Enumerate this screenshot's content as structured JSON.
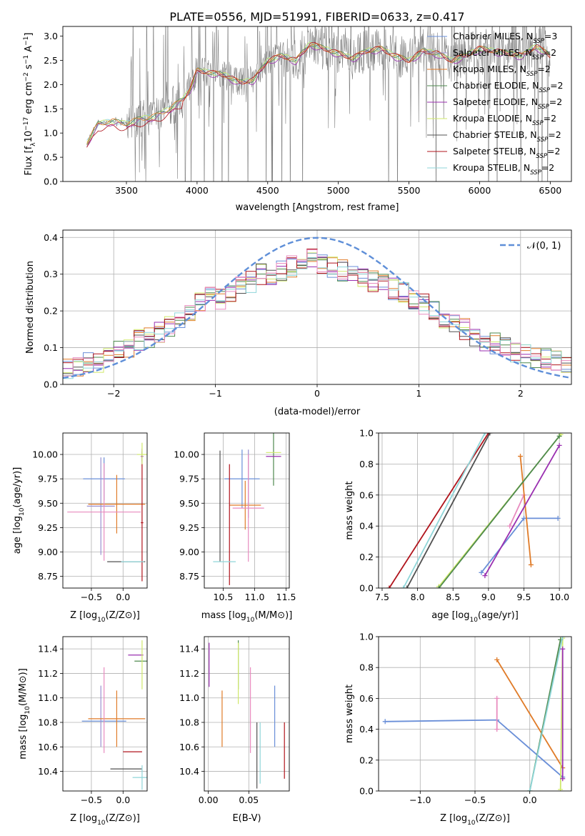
{
  "figure_title": "PLATE=0556, MJD=51991, FIBERID=0633, z=0.417",
  "colors": {
    "chabrier_miles": "#6a8fd8",
    "salpeter_miles": "#9b8fd0",
    "kroupa_miles": "#e07b28",
    "chabrier_elodie": "#4f8a4f",
    "salpeter_elodie": "#9a2fb0",
    "kroupa_elodie": "#cfe86a",
    "chabrier_stelib": "#505050",
    "salpeter_stelib": "#b0141c",
    "kroupa_stelib": "#8fd6d9",
    "data": "#808080",
    "normal_curve": "#5f8fd8",
    "pink_model": "#e88bbf",
    "grid": "#b0b0b0"
  },
  "chart_data": [
    {
      "id": "spectrum",
      "type": "line",
      "xlabel": "wavelength [Angstrom, rest frame]",
      "ylabel": "Flux [f",
      "xlim": [
        3050,
        6650
      ],
      "ylim": [
        0,
        3.2
      ],
      "xticks": [
        "3500",
        "4000",
        "4500",
        "5000",
        "5500",
        "6000",
        "6500"
      ],
      "xtick_values": [
        3500,
        4000,
        4500,
        5000,
        5500,
        6000,
        6500
      ],
      "yticks": [
        "0.0",
        "0.5",
        "1.0",
        "1.5",
        "2.0",
        "2.5",
        "3.0"
      ],
      "ytick_values": [
        0,
        0.5,
        1,
        1.5,
        2,
        2.5,
        3
      ],
      "grid": false,
      "legend_position": "top-right",
      "legend": [
        {
          "label": "Chabrier MILES, N",
          "sub": "SSP",
          "tail": "=3",
          "color_key": "chabrier_miles"
        },
        {
          "label": "Salpeter MILES, N",
          "sub": "SSP",
          "tail": "=2",
          "color_key": "salpeter_miles"
        },
        {
          "label": "Kroupa MILES, N",
          "sub": "SSP",
          "tail": "=2",
          "color_key": "kroupa_miles"
        },
        {
          "label": "Chabrier ELODIE, N",
          "sub": "SSP",
          "tail": "=2",
          "color_key": "chabrier_elodie"
        },
        {
          "label": "Salpeter ELODIE, N",
          "sub": "SSP",
          "tail": "=2",
          "color_key": "salpeter_elodie"
        },
        {
          "label": "Kroupa ELODIE, N",
          "sub": "SSP",
          "tail": "=2",
          "color_key": "kroupa_elodie"
        },
        {
          "label": "Chabrier STELIB, N",
          "sub": "SSP",
          "tail": "=2",
          "color_key": "chabrier_stelib"
        },
        {
          "label": "Salpeter STELIB, N",
          "sub": "SSP",
          "tail": "=2",
          "color_key": "salpeter_stelib"
        },
        {
          "label": "Kroupa STELIB, N",
          "sub": "SSP",
          "tail": "=2",
          "color_key": "kroupa_stelib"
        }
      ],
      "model_continuum": {
        "x": [
          3220,
          3300,
          3400,
          3500,
          3600,
          3700,
          3800,
          3900,
          3950,
          4000,
          4100,
          4200,
          4300,
          4400,
          4500,
          4600,
          4700,
          4800,
          4900,
          5000,
          5100,
          5200,
          5300,
          5400,
          5500,
          5600,
          5700,
          5800,
          5900,
          6000,
          6100,
          6200,
          6300,
          6400,
          6500
        ],
        "y": [
          0.8,
          1.2,
          1.25,
          1.2,
          1.3,
          1.35,
          1.5,
          1.7,
          1.9,
          2.3,
          2.25,
          2.2,
          2.05,
          2.1,
          2.5,
          2.6,
          2.5,
          2.85,
          2.75,
          2.65,
          2.55,
          2.7,
          2.75,
          2.6,
          2.5,
          2.7,
          2.65,
          2.5,
          2.6,
          2.75,
          2.7,
          2.65,
          2.6,
          2.8,
          2.6
        ]
      }
    },
    {
      "id": "residuals",
      "type": "histogram",
      "xlabel": "(data-model)/error",
      "ylabel": "Normed distribution",
      "xlim": [
        -2.5,
        2.5
      ],
      "ylim": [
        0,
        0.42
      ],
      "xticks": [
        "−2",
        "−1",
        "0",
        "1",
        "2"
      ],
      "xtick_values": [
        -2,
        -1,
        0,
        1,
        2
      ],
      "yticks": [
        "0.0",
        "0.1",
        "0.2",
        "0.3",
        "0.4"
      ],
      "ytick_values": [
        0,
        0.1,
        0.2,
        0.3,
        0.4
      ],
      "grid": true,
      "legend_position": "top-right",
      "legend_label": "𝒩(0, 1)",
      "normal_mean": 0,
      "normal_sigma": 1,
      "bin_centers": [
        -2.45,
        -2.35,
        -2.25,
        -2.15,
        -2.05,
        -1.95,
        -1.85,
        -1.75,
        -1.65,
        -1.55,
        -1.45,
        -1.35,
        -1.25,
        -1.15,
        -1.05,
        -0.95,
        -0.85,
        -0.75,
        -0.65,
        -0.55,
        -0.45,
        -0.35,
        -0.25,
        -0.15,
        -0.05,
        0.05,
        0.15,
        0.25,
        0.35,
        0.45,
        0.55,
        0.65,
        0.75,
        0.85,
        0.95,
        1.05,
        1.15,
        1.25,
        1.35,
        1.45,
        1.55,
        1.65,
        1.75,
        1.85,
        1.95,
        2.05,
        2.15,
        2.25,
        2.35,
        2.45
      ],
      "approx_heights": [
        0.04,
        0.045,
        0.06,
        0.055,
        0.07,
        0.09,
        0.1,
        0.12,
        0.13,
        0.14,
        0.16,
        0.18,
        0.2,
        0.22,
        0.24,
        0.23,
        0.25,
        0.27,
        0.28,
        0.3,
        0.29,
        0.31,
        0.32,
        0.33,
        0.34,
        0.33,
        0.32,
        0.31,
        0.3,
        0.29,
        0.28,
        0.27,
        0.26,
        0.25,
        0.23,
        0.22,
        0.2,
        0.18,
        0.16,
        0.15,
        0.13,
        0.12,
        0.11,
        0.1,
        0.09,
        0.08,
        0.075,
        0.07,
        0.065,
        0.06
      ]
    },
    {
      "id": "age_vs_z",
      "type": "scatter",
      "xlabel": "Z [log",
      "ylabel": "age  [log",
      "xlim": [
        -0.95,
        0.38
      ],
      "ylim": [
        8.63,
        10.22
      ],
      "xticks": [
        "−0.5",
        "0.0"
      ],
      "xtick_values": [
        -0.5,
        0.0
      ],
      "yticks": [
        "8.75",
        "9.00",
        "9.25",
        "9.50",
        "9.75",
        "10.00"
      ],
      "ytick_values": [
        8.75,
        9.0,
        9.25,
        9.5,
        9.75,
        10.0
      ],
      "grid": true,
      "points": [
        {
          "x": -0.3,
          "y": 9.75,
          "xerr": 0.33,
          "yerr": 0.22,
          "color_key": "chabrier_miles"
        },
        {
          "x": -0.35,
          "y": 9.47,
          "xerr": 0.22,
          "yerr": 0.5,
          "color_key": "salpeter_miles"
        },
        {
          "x": -0.1,
          "y": 9.49,
          "xerr": 0.45,
          "yerr": 0.3,
          "color_key": "kroupa_miles"
        },
        {
          "x": 0.3,
          "y": 9.98,
          "xerr": 0.0,
          "yerr": 0.05,
          "color_key": "chabrier_elodie"
        },
        {
          "x": 0.3,
          "y": 9.98,
          "xerr": 0.02,
          "yerr": 0.08,
          "color_key": "salpeter_elodie"
        },
        {
          "x": 0.3,
          "y": 10.0,
          "xerr": 0.08,
          "yerr": 0.12,
          "color_key": "kroupa_elodie"
        },
        {
          "x": 0.05,
          "y": 8.9,
          "xerr": 0.3,
          "yerr": 0.0,
          "color_key": "chabrier_stelib"
        },
        {
          "x": 0.3,
          "y": 9.3,
          "xerr": 0.02,
          "yerr": 0.6,
          "color_key": "salpeter_stelib"
        },
        {
          "x": 0.15,
          "y": 8.9,
          "xerr": 0.18,
          "yerr": 0.0,
          "color_key": "kroupa_stelib"
        },
        {
          "x": -0.3,
          "y": 9.41,
          "xerr": 0.58,
          "yerr": 0.5,
          "color_key": "pink_model"
        }
      ]
    },
    {
      "id": "age_vs_mass",
      "type": "scatter",
      "xlabel": "mass [log",
      "ylabel": "",
      "xlim": [
        10.2,
        11.55
      ],
      "ylim": [
        8.63,
        10.22
      ],
      "xticks": [
        "10.5",
        "11.0",
        "11.5"
      ],
      "xtick_values": [
        10.5,
        11.0,
        11.5
      ],
      "yticks": [
        "8.75",
        "9.00",
        "9.25",
        "9.50",
        "9.75",
        "10.00"
      ],
      "ytick_values": [
        8.75,
        9.0,
        9.25,
        9.5,
        9.75,
        10.0
      ],
      "grid": true,
      "points": [
        {
          "x": 10.8,
          "y": 9.75,
          "xerr": 0.28,
          "yerr": 0.3,
          "color_key": "chabrier_miles"
        },
        {
          "x": 10.9,
          "y": 9.7,
          "xerr": 0.0,
          "yerr": 0.35,
          "color_key": "salpeter_miles"
        },
        {
          "x": 10.85,
          "y": 9.48,
          "xerr": 0.25,
          "yerr": 0.25,
          "color_key": "kroupa_miles"
        },
        {
          "x": 11.3,
          "y": 9.98,
          "xerr": 0.0,
          "yerr": 0.3,
          "color_key": "chabrier_elodie"
        },
        {
          "x": 11.3,
          "y": 9.98,
          "xerr": 0.12,
          "yerr": 0.0,
          "color_key": "salpeter_elodie"
        },
        {
          "x": 11.3,
          "y": 10.02,
          "xerr": 0.12,
          "yerr": 0.0,
          "color_key": "kroupa_elodie"
        },
        {
          "x": 10.45,
          "y": 9.47,
          "xerr": 0.0,
          "yerr": 0.57,
          "color_key": "chabrier_stelib"
        },
        {
          "x": 10.6,
          "y": 9.28,
          "xerr": 0.0,
          "yerr": 0.62,
          "color_key": "salpeter_stelib"
        },
        {
          "x": 10.52,
          "y": 8.9,
          "xerr": 0.18,
          "yerr": 0.0,
          "color_key": "kroupa_stelib"
        },
        {
          "x": 10.9,
          "y": 9.45,
          "xerr": 0.25,
          "yerr": 0.55,
          "color_key": "pink_model"
        }
      ]
    },
    {
      "id": "weight_vs_age",
      "type": "line",
      "xlabel": "age  [log",
      "ylabel": "mass weight",
      "xlim": [
        7.45,
        10.17
      ],
      "ylim": [
        0,
        1
      ],
      "xticks": [
        "7.5",
        "8.0",
        "8.5",
        "9.0",
        "9.5",
        "10.0"
      ],
      "xtick_values": [
        7.5,
        8.0,
        8.5,
        9.0,
        9.5,
        10.0
      ],
      "yticks": [
        "0.0",
        "0.2",
        "0.4",
        "0.6",
        "0.8",
        "1.0"
      ],
      "ytick_values": [
        0,
        0.2,
        0.4,
        0.6,
        0.8,
        1.0
      ],
      "grid": true,
      "series": [
        {
          "color_key": "chabrier_miles",
          "x": [
            8.9,
            9.5,
            9.98
          ],
          "y": [
            0.1,
            0.45,
            0.45
          ]
        },
        {
          "color_key": "pink_model",
          "x": [
            9.3,
            9.5
          ],
          "y": [
            0.4,
            0.6
          ]
        },
        {
          "color_key": "kroupa_miles",
          "x": [
            9.45,
            9.6
          ],
          "y": [
            0.85,
            0.15
          ]
        },
        {
          "color_key": "salpeter_elodie",
          "x": [
            8.95,
            10.0
          ],
          "y": [
            0.08,
            0.92
          ]
        },
        {
          "color_key": "kroupa_elodie",
          "x": [
            8.3,
            10.02
          ],
          "y": [
            0.01,
            0.99
          ]
        },
        {
          "color_key": "chabrier_elodie",
          "x": [
            8.3,
            10.0
          ],
          "y": [
            0.0,
            0.98
          ]
        },
        {
          "color_key": "salpeter_stelib",
          "x": [
            7.6,
            9.0
          ],
          "y": [
            0.0,
            1.0
          ]
        },
        {
          "color_key": "chabrier_stelib",
          "x": [
            7.85,
            9.02
          ],
          "y": [
            0.0,
            1.0
          ]
        },
        {
          "color_key": "kroupa_stelib",
          "x": [
            7.8,
            8.95
          ],
          "y": [
            0.0,
            1.0
          ]
        }
      ]
    },
    {
      "id": "mass_vs_z",
      "type": "scatter",
      "xlabel": "Z [log",
      "ylabel": "mass [log",
      "xlim": [
        -0.95,
        0.38
      ],
      "ylim": [
        10.24,
        11.5
      ],
      "xticks": [
        "−0.5",
        "0.0"
      ],
      "xtick_values": [
        -0.5,
        0.0
      ],
      "yticks": [
        "10.4",
        "10.6",
        "10.8",
        "11.0",
        "11.2",
        "11.4"
      ],
      "ytick_values": [
        10.4,
        10.6,
        10.8,
        11.0,
        11.2,
        11.4
      ],
      "grid": true,
      "points": [
        {
          "x": -0.3,
          "y": 10.81,
          "xerr": 0.35,
          "yerr": 0.0,
          "color_key": "chabrier_miles"
        },
        {
          "x": -0.35,
          "y": 10.85,
          "xerr": 0.0,
          "yerr": 0.25,
          "color_key": "salpeter_miles"
        },
        {
          "x": -0.1,
          "y": 10.83,
          "xerr": 0.45,
          "yerr": 0.23,
          "color_key": "kroupa_miles"
        },
        {
          "x": 0.3,
          "y": 11.3,
          "xerr": 0.12,
          "yerr": 0.0,
          "color_key": "chabrier_elodie"
        },
        {
          "x": 0.2,
          "y": 11.35,
          "xerr": 0.12,
          "yerr": 0.0,
          "color_key": "salpeter_elodie"
        },
        {
          "x": 0.3,
          "y": 11.27,
          "xerr": 0.0,
          "yerr": 0.2,
          "color_key": "kroupa_elodie"
        },
        {
          "x": 0.05,
          "y": 10.42,
          "xerr": 0.25,
          "yerr": 0.0,
          "color_key": "chabrier_stelib"
        },
        {
          "x": 0.15,
          "y": 10.56,
          "xerr": 0.15,
          "yerr": 0.0,
          "color_key": "salpeter_stelib"
        },
        {
          "x": 0.3,
          "y": 10.35,
          "xerr": 0.15,
          "yerr": 0.1,
          "color_key": "kroupa_stelib"
        },
        {
          "x": -0.3,
          "y": 10.9,
          "xerr": 0.0,
          "yerr": 0.35,
          "color_key": "pink_model"
        }
      ]
    },
    {
      "id": "mass_vs_ebv",
      "type": "scatter",
      "xlabel": "E(B-V)",
      "ylabel": "",
      "xlim": [
        -0.005,
        0.1
      ],
      "ylim": [
        10.24,
        11.5
      ],
      "xticks": [
        "0.00",
        "0.05"
      ],
      "xtick_values": [
        0.0,
        0.05
      ],
      "yticks": [
        "10.4",
        "10.6",
        "10.8",
        "11.0",
        "11.2",
        "11.4"
      ],
      "ytick_values": [
        10.4,
        10.6,
        10.8,
        11.0,
        11.2,
        11.4
      ],
      "grid": true,
      "points": [
        {
          "x": 0.082,
          "y": 10.85,
          "xerr": 0.0,
          "yerr": 0.25,
          "color_key": "chabrier_miles"
        },
        {
          "x": 0.017,
          "y": 10.83,
          "xerr": 0.0,
          "yerr": 0.23,
          "color_key": "kroupa_miles"
        },
        {
          "x": 0.037,
          "y": 11.27,
          "xerr": 0.0,
          "yerr": 0.2,
          "color_key": "chabrier_elodie"
        },
        {
          "x": 0.001,
          "y": 11.27,
          "xerr": 0.0,
          "yerr": 0.18,
          "color_key": "salpeter_elodie"
        },
        {
          "x": 0.037,
          "y": 11.2,
          "xerr": 0.0,
          "yerr": 0.25,
          "color_key": "kroupa_elodie"
        },
        {
          "x": 0.06,
          "y": 10.53,
          "xerr": 0.0,
          "yerr": 0.27,
          "color_key": "chabrier_stelib"
        },
        {
          "x": 0.094,
          "y": 10.57,
          "xerr": 0.0,
          "yerr": 0.23,
          "color_key": "salpeter_stelib"
        },
        {
          "x": 0.064,
          "y": 10.55,
          "xerr": 0.0,
          "yerr": 0.25,
          "color_key": "kroupa_stelib"
        },
        {
          "x": 0.052,
          "y": 10.9,
          "xerr": 0.0,
          "yerr": 0.35,
          "color_key": "pink_model"
        }
      ]
    },
    {
      "id": "weight_vs_z",
      "type": "line",
      "xlabel": "Z [log",
      "ylabel": "mass weight",
      "xlim": [
        -1.38,
        0.38
      ],
      "ylim": [
        0,
        1
      ],
      "xticks": [
        "−1.0",
        "−0.5",
        "0.0"
      ],
      "xtick_values": [
        -1.0,
        -0.5,
        0.0
      ],
      "yticks": [
        "0.0",
        "0.2",
        "0.4",
        "0.6",
        "0.8",
        "1.0"
      ],
      "ytick_values": [
        0,
        0.2,
        0.4,
        0.6,
        0.8,
        1.0
      ],
      "grid": true,
      "series": [
        {
          "color_key": "chabrier_miles",
          "x": [
            -1.32,
            -0.3,
            0.3
          ],
          "y": [
            0.45,
            0.46,
            0.09
          ]
        },
        {
          "color_key": "pink_model",
          "x": [
            -0.3,
            -0.3
          ],
          "y": [
            0.4,
            0.6
          ]
        },
        {
          "color_key": "kroupa_miles",
          "x": [
            -0.3,
            0.3
          ],
          "y": [
            0.85,
            0.15
          ]
        },
        {
          "color_key": "kroupa_elodie",
          "x": [
            0.28,
            0.3
          ],
          "y": [
            0.01,
            0.99
          ]
        },
        {
          "color_key": "chabrier_elodie",
          "x": [
            0.0,
            0.28
          ],
          "y": [
            0.0,
            0.98
          ]
        },
        {
          "color_key": "kroupa_stelib",
          "x": [
            0.0,
            0.3
          ],
          "y": [
            0.0,
            1.0
          ]
        },
        {
          "color_key": "salpeter_elodie",
          "x": [
            0.3,
            0.3
          ],
          "y": [
            0.08,
            0.92
          ]
        }
      ]
    }
  ]
}
